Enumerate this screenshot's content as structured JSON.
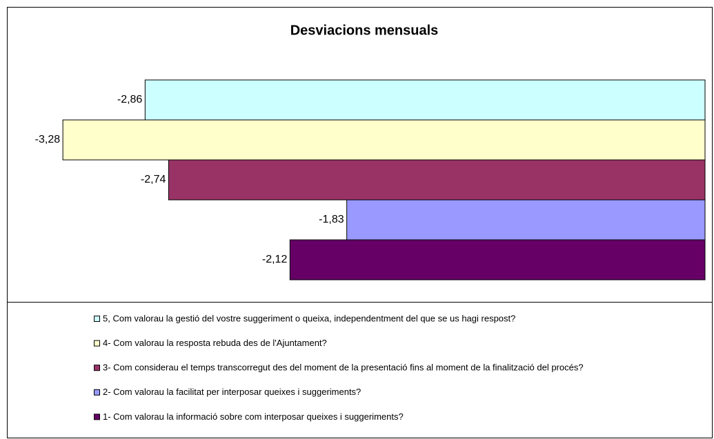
{
  "chart_data": {
    "type": "bar",
    "orientation": "horizontal",
    "title": "Desviacions mensuals",
    "xlim": [
      -3.5,
      0
    ],
    "series": [
      {
        "name": "5, Com valorau la gestió del vostre suggeriment o queixa, independentment del que se us hagi respost?",
        "color": "#CCFFFF",
        "values": [
          -2.86
        ],
        "value_labels": [
          "-2,86"
        ]
      },
      {
        "name": "4- Com valorau la resposta rebuda des de l'Ajuntament?",
        "color": "#FFFFCC",
        "values": [
          -3.28
        ],
        "value_labels": [
          "-3,28"
        ]
      },
      {
        "name": "3- Com considerau el temps transcorregut des del moment de la presentació fins al moment de la finalització del procés?",
        "color": "#993366",
        "values": [
          -2.74
        ],
        "value_labels": [
          "-2,74"
        ]
      },
      {
        "name": "2- Com valorau la facilitat per interposar queixes i suggeriments?",
        "color": "#9999FF",
        "values": [
          -1.83
        ],
        "value_labels": [
          "-1,83"
        ]
      },
      {
        "name": "1- Com valorau la informació sobre com interposar queixes i suggeriments?",
        "color": "#660066",
        "values": [
          -2.12
        ],
        "value_labels": [
          "-2,12"
        ]
      }
    ]
  }
}
